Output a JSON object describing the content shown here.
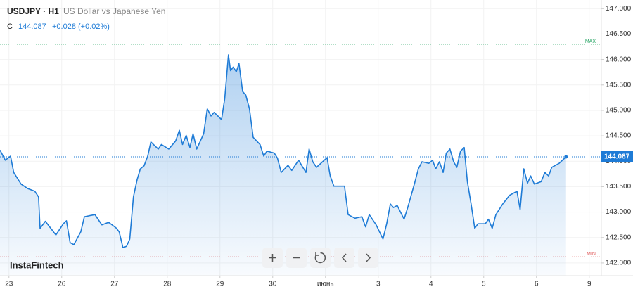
{
  "chart_data": {
    "type": "area",
    "symbol": "USDJPY · H1",
    "title": "US Dollar vs Japanese Yen",
    "close_label": "C",
    "close": 144.087,
    "change": "+0.028 (+0.02%)",
    "logo": "InstaFintech",
    "color": "#1e7bd6",
    "grid": true,
    "x": [
      -0.17,
      -0.07,
      0.03,
      0.09,
      0.23,
      0.36,
      0.49,
      0.56,
      0.59,
      0.69,
      0.89,
      1.03,
      1.09,
      1.16,
      1.23,
      1.36,
      1.43,
      1.63,
      1.76,
      1.89,
      2.03,
      2.09,
      2.16,
      2.23,
      2.29,
      2.36,
      2.43,
      2.49,
      2.56,
      2.63,
      2.69,
      2.83,
      2.89,
      3.03,
      3.16,
      3.23,
      3.29,
      3.36,
      3.43,
      3.49,
      3.56,
      3.69,
      3.76,
      3.83,
      3.89,
      4.03,
      4.09,
      4.16,
      4.2,
      4.25,
      4.31,
      4.36,
      4.43,
      4.49,
      4.56,
      4.63,
      4.76,
      4.83,
      4.89,
      5.03,
      5.09,
      5.16,
      5.29,
      5.36,
      5.49,
      5.63,
      5.69,
      5.76,
      5.83,
      6.03,
      6.09,
      6.16,
      6.36,
      6.43,
      6.56,
      6.69,
      6.76,
      6.83,
      6.96,
      7.09,
      7.16,
      7.23,
      7.29,
      7.36,
      7.49,
      7.56,
      7.69,
      7.76,
      7.83,
      7.96,
      8.03,
      8.09,
      8.16,
      8.23,
      8.29,
      8.36,
      8.43,
      8.49,
      8.56,
      8.63,
      8.69,
      8.76,
      8.83,
      8.89,
      9.03,
      9.09,
      9.16,
      9.23,
      9.36,
      9.49,
      9.63,
      9.69,
      9.76,
      9.83,
      9.89,
      9.96,
      10.09,
      10.16,
      10.23,
      10.29,
      10.43,
      10.56
    ],
    "values": [
      144.22,
      144.02,
      144.1,
      143.78,
      143.55,
      143.46,
      143.41,
      143.3,
      142.68,
      142.82,
      142.55,
      142.77,
      142.83,
      142.4,
      142.36,
      142.61,
      142.91,
      142.95,
      142.75,
      142.8,
      142.69,
      142.61,
      142.3,
      142.33,
      142.47,
      143.3,
      143.64,
      143.85,
      143.91,
      144.1,
      144.38,
      144.24,
      144.33,
      144.24,
      144.4,
      144.61,
      144.33,
      144.51,
      144.27,
      144.54,
      144.24,
      144.54,
      145.03,
      144.89,
      144.96,
      144.82,
      145.23,
      146.09,
      145.78,
      145.85,
      145.76,
      145.92,
      145.37,
      145.3,
      145.03,
      144.47,
      144.33,
      144.1,
      144.2,
      144.16,
      144.06,
      143.78,
      143.92,
      143.82,
      144.02,
      143.78,
      144.24,
      143.99,
      143.88,
      144.07,
      143.71,
      143.51,
      143.51,
      142.95,
      142.88,
      142.91,
      142.71,
      142.95,
      142.75,
      142.47,
      142.77,
      143.16,
      143.09,
      143.13,
      142.86,
      143.09,
      143.57,
      143.85,
      143.99,
      143.96,
      144.02,
      143.85,
      143.99,
      143.78,
      144.16,
      144.24,
      143.99,
      143.88,
      144.2,
      144.27,
      143.6,
      143.16,
      142.68,
      142.77,
      142.77,
      142.86,
      142.68,
      142.95,
      143.16,
      143.33,
      143.41,
      143.05,
      143.85,
      143.57,
      143.71,
      143.55,
      143.6,
      143.78,
      143.71,
      143.88,
      143.96,
      144.087
    ],
    "xlim": [
      -0.17,
      11.23
    ],
    "xticks": [
      {
        "value": 0,
        "label": "23"
      },
      {
        "value": 1,
        "label": "26"
      },
      {
        "value": 2,
        "label": "27"
      },
      {
        "value": 3,
        "label": "28"
      },
      {
        "value": 4,
        "label": "29"
      },
      {
        "value": 5,
        "label": "30"
      },
      {
        "value": 6,
        "label": "июнь"
      },
      {
        "value": 7,
        "label": "3"
      },
      {
        "value": 8,
        "label": "4"
      },
      {
        "value": 9,
        "label": "5"
      },
      {
        "value": 10,
        "label": "6"
      },
      {
        "value": 11,
        "label": "9"
      }
    ],
    "ylim": [
      141.75,
      147.17
    ],
    "yticks": [
      {
        "value": 142,
        "label": "142.000"
      },
      {
        "value": 142.5,
        "label": "142.500"
      },
      {
        "value": 143,
        "label": "143.000"
      },
      {
        "value": 143.5,
        "label": "143.500"
      },
      {
        "value": 144,
        "label": "144.000"
      },
      {
        "value": 144.5,
        "label": "144.500"
      },
      {
        "value": 145,
        "label": "145.000"
      },
      {
        "value": 145.5,
        "label": "145.500"
      },
      {
        "value": 146,
        "label": "146.000"
      },
      {
        "value": 146.5,
        "label": "146.500"
      },
      {
        "value": 147,
        "label": "147.000"
      }
    ],
    "levels": [
      {
        "label": "MAX",
        "value": 146.3,
        "color": "#2fa86a"
      },
      {
        "label": "MIN",
        "value": 142.12,
        "color": "#e05a5a"
      }
    ]
  }
}
